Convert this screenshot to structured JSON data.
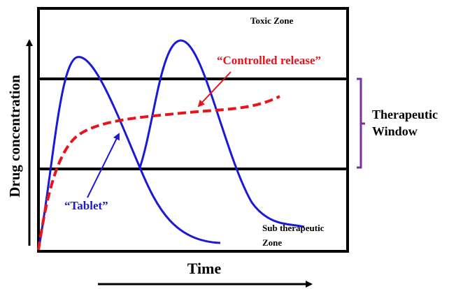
{
  "zones": {
    "toxic": "Toxic Zone",
    "sub_line1": "Sub therapeutic",
    "sub_line2": "Zone"
  },
  "labels": {
    "controlled": "“Controlled release”",
    "tablet": "“Tablet”"
  },
  "window": {
    "line1": "Therapeutic",
    "line2": "Window"
  },
  "axes": {
    "y": "Drug concentration",
    "x": "Time"
  }
}
